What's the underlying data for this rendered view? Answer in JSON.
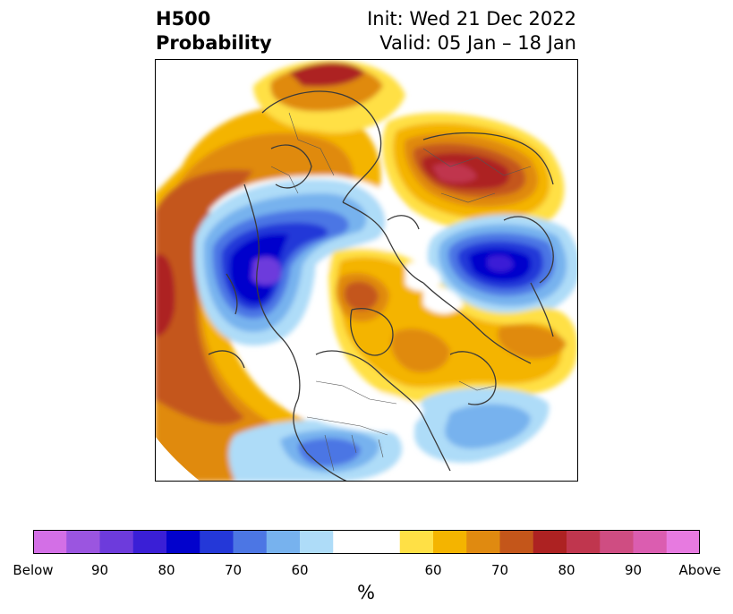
{
  "title": {
    "left_line1": "H500",
    "left_line2": "Probability",
    "right_line1": "Init: Wed 21 Dec 2022",
    "right_line2": "Valid: 05 Jan – 18 Jan"
  },
  "map": {
    "projection": "north-polar-stereographic",
    "boundaries": "coastlines-and-country-borders"
  },
  "colorbar": {
    "unit": "%",
    "ticks": [
      "Below",
      "90",
      "80",
      "70",
      "60",
      "60",
      "70",
      "80",
      "90",
      "Above"
    ],
    "bins": [
      {
        "color": "#d36fe6"
      },
      {
        "color": "#9b55e0"
      },
      {
        "color": "#6d3bdc"
      },
      {
        "color": "#3a1fd6"
      },
      {
        "color": "#0202cc"
      },
      {
        "color": "#2438d8"
      },
      {
        "color": "#4c76e4"
      },
      {
        "color": "#77b2ee"
      },
      {
        "color": "#aedcf8"
      },
      {
        "color": "#ffffff"
      },
      {
        "color": "#ffe045"
      },
      {
        "color": "#f4b400"
      },
      {
        "color": "#e08a10"
      },
      {
        "color": "#c4561a"
      },
      {
        "color": "#ad2222"
      },
      {
        "color": "#c0364e"
      },
      {
        "color": "#cf4d82"
      },
      {
        "color": "#db5db0"
      },
      {
        "color": "#e77ae0"
      }
    ]
  }
}
